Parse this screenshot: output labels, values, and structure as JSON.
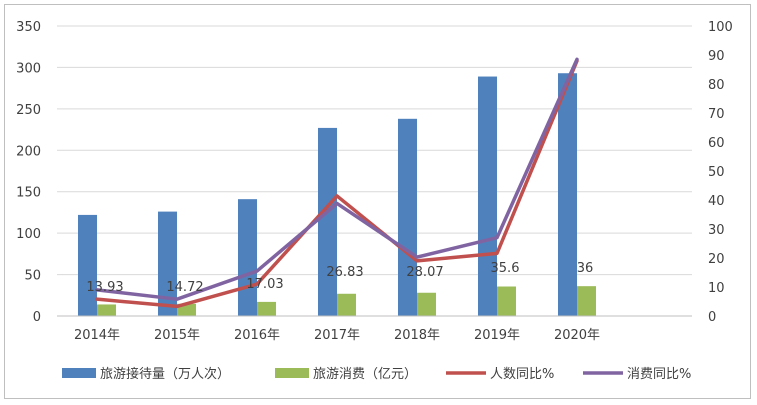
{
  "chart_data": {
    "type": "bar",
    "categories": [
      "2014年",
      "2015年",
      "2016年",
      "2017年",
      "2018年",
      "2019年",
      "2020年"
    ],
    "y_left": {
      "ylim": [
        0,
        350
      ],
      "ticks": [
        "0",
        "50",
        "100",
        "150",
        "200",
        "250",
        "300",
        "350"
      ]
    },
    "y_right": {
      "ylim": [
        0,
        100
      ],
      "ticks": [
        "0",
        "10",
        "20",
        "30",
        "40",
        "50",
        "60",
        "70",
        "80",
        "90",
        "100"
      ]
    },
    "series": [
      {
        "name": "旅游接待量（万人次）",
        "type": "bar",
        "axis": "left",
        "color": "#4f81bd",
        "values": [
          122,
          126,
          141,
          227,
          238,
          289,
          293
        ]
      },
      {
        "name": "旅游消费（亿元）",
        "type": "bar",
        "axis": "left",
        "color": "#9bbb59",
        "values": [
          13.93,
          14.72,
          17.03,
          26.83,
          28.07,
          35.6,
          36
        ],
        "labels": [
          "13.93",
          "14.72",
          "17.03",
          "26.83",
          "28.07",
          "35.6",
          "36"
        ]
      },
      {
        "name": "人数同比%",
        "type": "line",
        "axis": "right",
        "color": "#c0504d",
        "values": [
          5.8,
          3.3,
          11,
          41.4,
          19,
          21.6,
          88
        ]
      },
      {
        "name": "消费同比%",
        "type": "line",
        "axis": "right",
        "color": "#8064a2",
        "values": [
          9,
          5.8,
          15.5,
          38.8,
          20.3,
          27,
          88.5
        ]
      }
    ],
    "grid": true,
    "legend_position": "bottom"
  }
}
